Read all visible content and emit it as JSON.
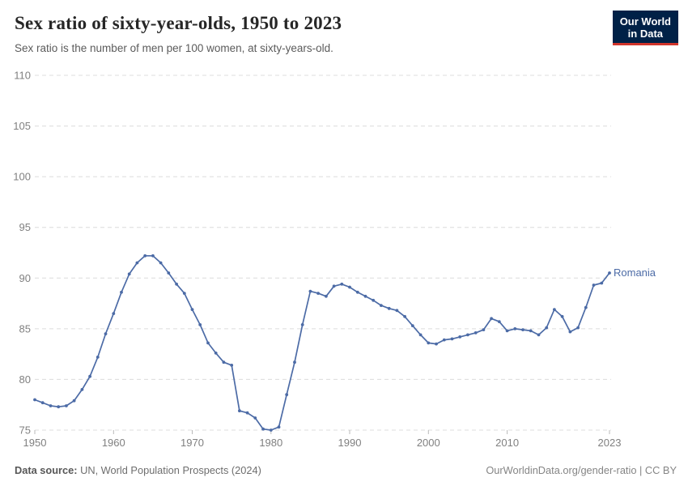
{
  "header": {
    "title": "Sex ratio of sixty-year-olds, 1950 to 2023",
    "subtitle": "Sex ratio is the number of men per 100 women, at sixty-years-old.",
    "logo": {
      "line1": "Our World",
      "line2": "in Data"
    }
  },
  "chart_data": {
    "type": "line",
    "title": "Sex ratio of sixty-year-olds, 1950 to 2023",
    "xlabel": "",
    "ylabel": "",
    "xlim": [
      1950,
      2023
    ],
    "ylim": [
      75,
      110
    ],
    "xticks": [
      1950,
      1960,
      1970,
      1980,
      1990,
      2000,
      2010,
      2023
    ],
    "yticks": [
      75,
      80,
      85,
      90,
      95,
      100,
      105,
      110
    ],
    "grid": "horizontal-dashed",
    "legend_position": "end-of-line-label",
    "series": [
      {
        "name": "Romania",
        "color": "#4C6BA6",
        "x": [
          1950,
          1951,
          1952,
          1953,
          1954,
          1955,
          1956,
          1957,
          1958,
          1959,
          1960,
          1961,
          1962,
          1963,
          1964,
          1965,
          1966,
          1967,
          1968,
          1969,
          1970,
          1971,
          1972,
          1973,
          1974,
          1975,
          1976,
          1977,
          1978,
          1979,
          1980,
          1981,
          1982,
          1983,
          1984,
          1985,
          1986,
          1987,
          1988,
          1989,
          1990,
          1991,
          1992,
          1993,
          1994,
          1995,
          1996,
          1997,
          1998,
          1999,
          2000,
          2001,
          2002,
          2003,
          2004,
          2005,
          2006,
          2007,
          2008,
          2009,
          2010,
          2011,
          2012,
          2013,
          2014,
          2015,
          2016,
          2017,
          2018,
          2019,
          2020,
          2021,
          2022,
          2023
        ],
        "values": [
          78.0,
          77.7,
          77.4,
          77.3,
          77.4,
          77.9,
          79.0,
          80.3,
          82.2,
          84.5,
          86.5,
          88.6,
          90.4,
          91.5,
          92.2,
          92.2,
          91.5,
          90.5,
          89.4,
          88.5,
          86.9,
          85.4,
          83.6,
          82.6,
          81.7,
          81.4,
          76.9,
          76.7,
          76.2,
          75.1,
          75.0,
          75.3,
          78.5,
          81.7,
          85.4,
          88.7,
          88.5,
          88.2,
          89.2,
          89.4,
          89.1,
          88.6,
          88.2,
          87.8,
          87.3,
          87.0,
          86.8,
          86.2,
          85.3,
          84.4,
          83.6,
          83.5,
          83.9,
          84.0,
          84.2,
          84.4,
          84.6,
          84.9,
          86.0,
          85.7,
          84.8,
          85.0,
          84.9,
          84.8,
          84.4,
          85.1,
          86.9,
          86.2,
          84.7,
          85.1,
          87.1,
          89.3,
          89.5,
          90.5
        ]
      }
    ]
  },
  "footer": {
    "source_label": "Data source:",
    "source_text": " UN, World Population Prospects (2024)",
    "credit": "OurWorldinData.org/gender-ratio | CC BY"
  },
  "colors": {
    "series": "#4C6BA6",
    "gridline": "#dcdcdc",
    "tick_text": "#808080",
    "logo_bg": "#002147",
    "logo_accent": "#d1352b"
  }
}
